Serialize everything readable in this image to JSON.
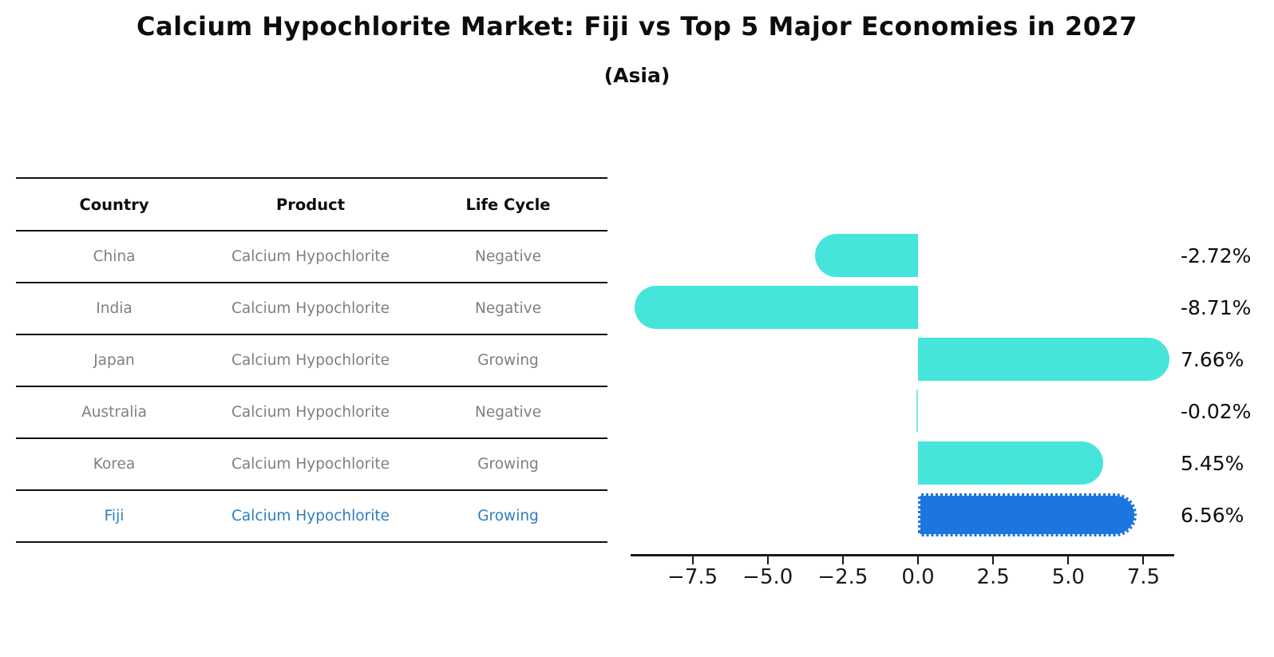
{
  "title": "Calcium Hypochlorite Market: Fiji vs Top 5 Major Economies in 2027",
  "subtitle": "(Asia)",
  "table": {
    "headers": [
      "Country",
      "Product",
      "Life Cycle"
    ],
    "rows": [
      {
        "country": "China",
        "product": "Calcium Hypochlorite",
        "life_cycle": "Negative",
        "highlight": false
      },
      {
        "country": "India",
        "product": "Calcium Hypochlorite",
        "life_cycle": "Negative",
        "highlight": false
      },
      {
        "country": "Japan",
        "product": "Calcium Hypochlorite",
        "life_cycle": "Growing",
        "highlight": false
      },
      {
        "country": "Australia",
        "product": "Calcium Hypochlorite",
        "life_cycle": "Negative",
        "highlight": false
      },
      {
        "country": "Korea",
        "product": "Calcium Hypochlorite",
        "life_cycle": "Growing",
        "highlight": false
      },
      {
        "country": "Fiji",
        "product": "Calcium Hypochlorite",
        "life_cycle": "Growing",
        "highlight": true
      }
    ]
  },
  "chart_data": {
    "type": "bar",
    "orientation": "horizontal",
    "title": "Calcium Hypochlorite Market: Fiji vs Top 5 Major Economies in 2027",
    "subtitle": "(Asia)",
    "categories": [
      "China",
      "India",
      "Japan",
      "Australia",
      "Korea",
      "Fiji"
    ],
    "values": [
      -2.72,
      -8.71,
      7.66,
      -0.02,
      5.45,
      6.56
    ],
    "value_labels": [
      "-2.72%",
      "-8.71%",
      "7.66%",
      "-0.02%",
      "5.45%",
      "6.56%"
    ],
    "x_tick_labels": [
      "−7.5",
      "−5.0",
      "−2.5",
      "0.0",
      "2.5",
      "5.0",
      "7.5"
    ],
    "x_tick_values": [
      -7.5,
      -5.0,
      -2.5,
      0.0,
      2.5,
      5.0,
      7.5
    ],
    "xlim": [
      -9.56,
      8.52
    ],
    "grid": false,
    "legend": null,
    "bar_color": "#45E5DC",
    "highlight_bar_color": "#1B76E0",
    "highlight_index": 5,
    "highlight_country": "Fiji"
  },
  "colors": {
    "title_text": "#0d0d0d",
    "cell_text": "#7f7f7f",
    "highlight_text": "#2e7ebf",
    "line": "#111111"
  }
}
